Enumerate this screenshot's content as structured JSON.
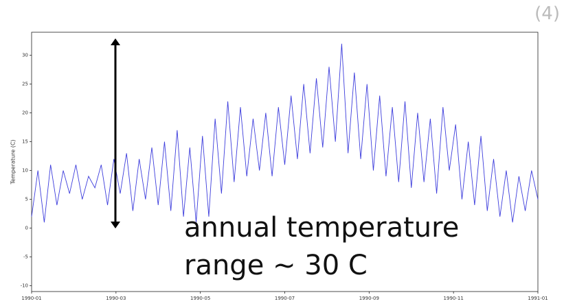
{
  "chart_data": {
    "type": "line",
    "ylabel": "Temperature (C)",
    "annotation": [
      "annual temperature",
      "range ~ 30 C"
    ],
    "badge": "(4)",
    "x": [
      0,
      0.15,
      0.3,
      0.45,
      0.6,
      0.75,
      0.9,
      1.05,
      1.2,
      1.35,
      1.5,
      1.65,
      1.8,
      1.95,
      2.1,
      2.25,
      2.4,
      2.55,
      2.7,
      2.85,
      3,
      3.15,
      3.3,
      3.45,
      3.6,
      3.75,
      3.9,
      4.05,
      4.2,
      4.35,
      4.5,
      4.65,
      4.8,
      4.95,
      5.1,
      5.25,
      5.4,
      5.55,
      5.7,
      5.85,
      6,
      6.15,
      6.3,
      6.45,
      6.6,
      6.75,
      6.9,
      7.05,
      7.2,
      7.35,
      7.5,
      7.65,
      7.8,
      7.95,
      8.1,
      8.25,
      8.4,
      8.55,
      8.7,
      8.85,
      9,
      9.15,
      9.3,
      9.45,
      9.6,
      9.75,
      9.9,
      10.05,
      10.2,
      10.35,
      10.5,
      10.65,
      10.8,
      10.95,
      11.1,
      11.25,
      11.4,
      11.55,
      11.7,
      11.85,
      12
    ],
    "series": [
      {
        "color": "#3c3cdc",
        "values": [
          2,
          10,
          1,
          11,
          4,
          10,
          6,
          11,
          5,
          9,
          7,
          11,
          4,
          12,
          6,
          13,
          3,
          12,
          5,
          14,
          4,
          15,
          3,
          17,
          2,
          14,
          1,
          16,
          2,
          19,
          6,
          22,
          8,
          21,
          9,
          19,
          10,
          20,
          9,
          21,
          11,
          23,
          12,
          25,
          13,
          26,
          14,
          28,
          15,
          32,
          13,
          27,
          12,
          25,
          10,
          23,
          9,
          21,
          8,
          22,
          7,
          20,
          8,
          19,
          6,
          21,
          10,
          18,
          5,
          15,
          4,
          16,
          3,
          12,
          2,
          10,
          1,
          9,
          3,
          10,
          5
        ]
      }
    ],
    "xlim": [
      0,
      12
    ],
    "xticks": [
      {
        "value": 0,
        "label": "1990-01"
      },
      {
        "value": 2,
        "label": "1990-03"
      },
      {
        "value": 4,
        "label": "1990-05"
      },
      {
        "value": 6,
        "label": "1990-07"
      },
      {
        "value": 8,
        "label": "1990-09"
      },
      {
        "value": 10,
        "label": "1990-11"
      },
      {
        "value": 12,
        "label": "1991-01"
      }
    ],
    "ylim": [
      -11,
      34
    ],
    "yticks": [
      -10,
      -5,
      0,
      5,
      10,
      15,
      20,
      25,
      30
    ]
  }
}
